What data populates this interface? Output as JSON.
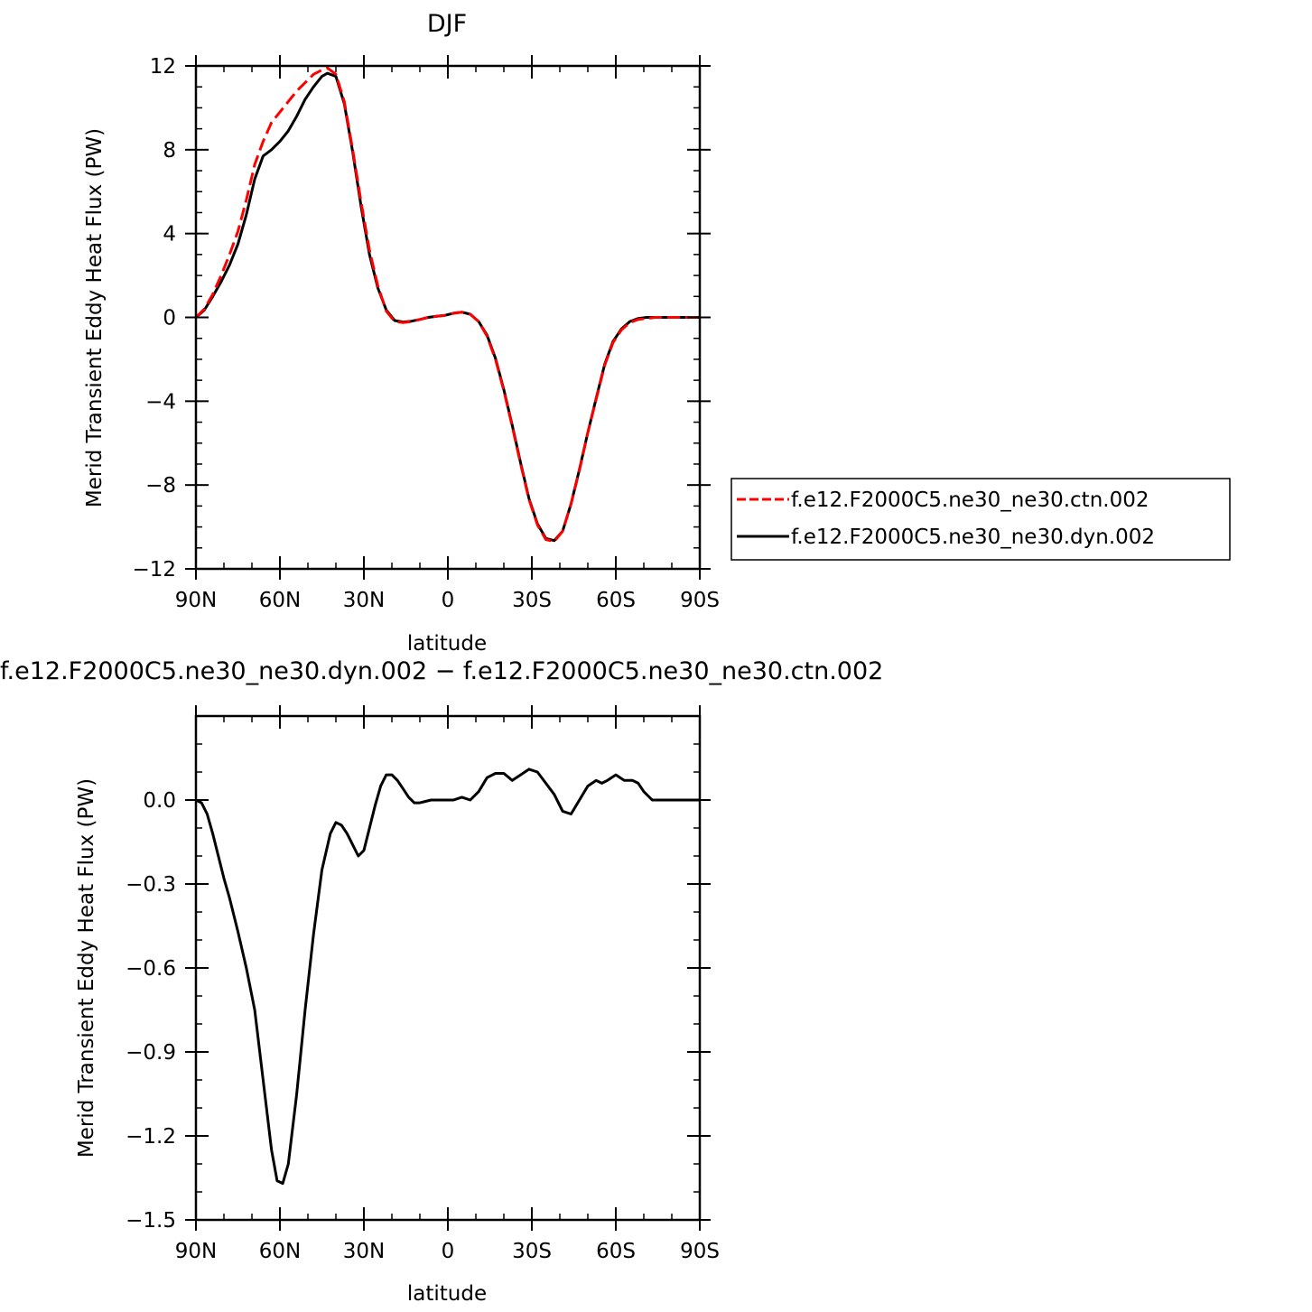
{
  "chart_data": [
    {
      "type": "line",
      "title": "DJF",
      "xlabel": "latitude",
      "ylabel": "Merid Transient Eddy Heat Flux (PW)",
      "xlim": [
        90,
        -90
      ],
      "ylim": [
        -12,
        12
      ],
      "xticks": [
        90,
        60,
        30,
        0,
        -30,
        -60,
        -90
      ],
      "xtick_labels": [
        "90N",
        "60N",
        "30N",
        "0",
        "30S",
        "60S",
        "90S"
      ],
      "yticks": [
        -12,
        -8,
        -4,
        0,
        4,
        8,
        12
      ],
      "ytick_labels": [
        "−12",
        "−8",
        "−4",
        "0",
        "4",
        "8",
        "12"
      ],
      "legend_position": "right",
      "grid": false,
      "series": [
        {
          "name": "f.e12.F2000C5.ne30_ne30.ctn.002",
          "color": "#ff0000",
          "dash": "dashed",
          "x": [
            90,
            87,
            84,
            81,
            78,
            75,
            72,
            69,
            66,
            63,
            60,
            57,
            54,
            51,
            48,
            45,
            43,
            40,
            37,
            34,
            31,
            28,
            25,
            22,
            19,
            16,
            13,
            10,
            7,
            4,
            1,
            -2,
            -5,
            -8,
            -11,
            -14,
            -17,
            -20,
            -23,
            -26,
            -29,
            -32,
            -35,
            -38,
            -41,
            -44,
            -47,
            -50,
            -53,
            -56,
            -59,
            -62,
            -65,
            -68,
            -71,
            -74,
            -77,
            -80,
            -83,
            -86,
            -90
          ],
          "values": [
            0.0,
            0.4,
            1.1,
            2.0,
            3.0,
            4.1,
            5.6,
            7.3,
            8.4,
            9.3,
            9.8,
            10.3,
            10.8,
            11.2,
            11.6,
            11.8,
            11.9,
            11.6,
            10.3,
            8.0,
            5.5,
            3.2,
            1.5,
            0.3,
            -0.2,
            -0.25,
            -0.2,
            -0.1,
            0.0,
            0.05,
            0.1,
            0.2,
            0.25,
            0.15,
            -0.2,
            -0.9,
            -2.0,
            -3.5,
            -5.2,
            -7.0,
            -8.7,
            -9.9,
            -10.6,
            -10.7,
            -10.2,
            -8.9,
            -7.3,
            -5.5,
            -3.9,
            -2.3,
            -1.2,
            -0.6,
            -0.25,
            -0.1,
            -0.05,
            0.0,
            0.0,
            0.0,
            0.0,
            0.0,
            0.0
          ]
        },
        {
          "name": "f.e12.F2000C5.ne30_ne30.dyn.002",
          "color": "#000000",
          "dash": "solid",
          "x": [
            90,
            87,
            84,
            81,
            78,
            75,
            72,
            69,
            66,
            63,
            60,
            57,
            54,
            51,
            48,
            45,
            43,
            40,
            37,
            34,
            31,
            28,
            25,
            22,
            19,
            16,
            13,
            10,
            7,
            4,
            1,
            -2,
            -5,
            -8,
            -11,
            -14,
            -17,
            -20,
            -23,
            -26,
            -29,
            -32,
            -35,
            -38,
            -41,
            -44,
            -47,
            -50,
            -53,
            -56,
            -59,
            -62,
            -65,
            -68,
            -71,
            -74,
            -77,
            -80,
            -83,
            -86,
            -90
          ],
          "values": [
            0.0,
            0.35,
            1.0,
            1.7,
            2.5,
            3.5,
            4.9,
            6.6,
            7.7,
            8.0,
            8.4,
            8.9,
            9.6,
            10.4,
            11.0,
            11.5,
            11.65,
            11.5,
            10.2,
            7.9,
            5.3,
            3.0,
            1.4,
            0.35,
            -0.15,
            -0.22,
            -0.18,
            -0.1,
            0.0,
            0.05,
            0.1,
            0.2,
            0.25,
            0.15,
            -0.2,
            -0.85,
            -1.95,
            -3.45,
            -5.15,
            -6.95,
            -8.65,
            -9.85,
            -10.55,
            -10.65,
            -10.2,
            -8.9,
            -7.25,
            -5.5,
            -3.85,
            -2.25,
            -1.15,
            -0.55,
            -0.2,
            -0.05,
            0.0,
            0.0,
            0.0,
            0.0,
            0.0,
            0.0,
            0.0
          ]
        }
      ]
    },
    {
      "type": "line",
      "title": "f.e12.F2000C5.ne30_ne30.dyn.002 − f.e12.F2000C5.ne30_ne30.ctn.002",
      "xlabel": "latitude",
      "ylabel": "Merid Transient Eddy Heat Flux (PW)",
      "xlim": [
        90,
        -90
      ],
      "ylim": [
        -1.5,
        0.3
      ],
      "xticks": [
        90,
        60,
        30,
        0,
        -30,
        -60,
        -90
      ],
      "xtick_labels": [
        "90N",
        "60N",
        "30N",
        "0",
        "30S",
        "60S",
        "90S"
      ],
      "yticks": [
        -1.5,
        -1.2,
        -0.9,
        -0.6,
        -0.3,
        0.0
      ],
      "ytick_labels": [
        "−1.5",
        "−1.2",
        "−0.9",
        "−0.6",
        "−0.3",
        "0.0"
      ],
      "grid": false,
      "series": [
        {
          "color": "#000000",
          "dash": "solid",
          "x": [
            90,
            88,
            86,
            84,
            82,
            80,
            78,
            75,
            72,
            69,
            66,
            63,
            61,
            59,
            57,
            54,
            51,
            48,
            45,
            42,
            40,
            38,
            36,
            34,
            32,
            30,
            28,
            26,
            24,
            22,
            20,
            18,
            16,
            14,
            12,
            10,
            8,
            6,
            4,
            2,
            0,
            -2,
            -5,
            -8,
            -11,
            -14,
            -17,
            -20,
            -23,
            -26,
            -29,
            -32,
            -35,
            -38,
            -41,
            -44,
            -47,
            -50,
            -53,
            -55,
            -57,
            -60,
            -63,
            -66,
            -68,
            -70,
            -73,
            -76,
            -79,
            -82,
            -85,
            -88,
            -90
          ],
          "values": [
            0.0,
            -0.01,
            -0.05,
            -0.12,
            -0.2,
            -0.28,
            -0.35,
            -0.47,
            -0.6,
            -0.75,
            -1.0,
            -1.25,
            -1.36,
            -1.37,
            -1.3,
            -1.05,
            -0.75,
            -0.48,
            -0.25,
            -0.12,
            -0.08,
            -0.09,
            -0.12,
            -0.16,
            -0.2,
            -0.18,
            -0.1,
            -0.02,
            0.05,
            0.09,
            0.09,
            0.07,
            0.04,
            0.01,
            -0.01,
            -0.01,
            -0.005,
            0.0,
            0.0,
            0.0,
            0.0,
            0.0,
            0.01,
            0.0,
            0.03,
            0.08,
            0.095,
            0.095,
            0.07,
            0.09,
            0.11,
            0.1,
            0.06,
            0.02,
            -0.04,
            -0.05,
            0.0,
            0.05,
            0.07,
            0.06,
            0.07,
            0.09,
            0.07,
            0.07,
            0.06,
            0.03,
            0.0,
            0.0,
            0.0,
            0.0,
            0.0,
            0.0,
            0.0
          ]
        }
      ]
    }
  ]
}
